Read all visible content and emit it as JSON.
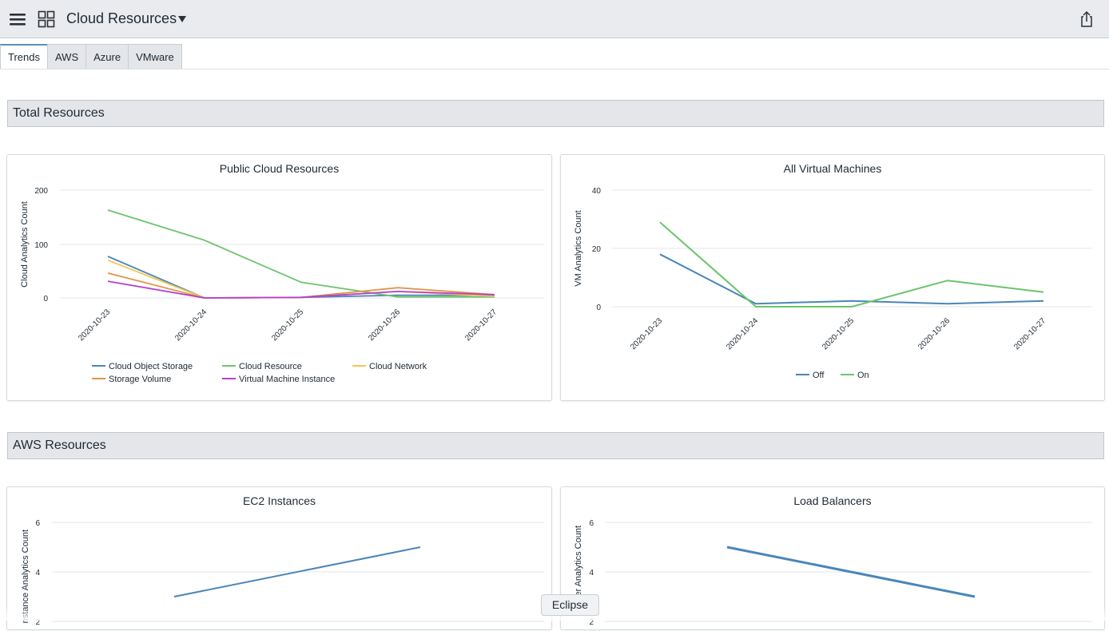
{
  "header": {
    "title": "Cloud Resources",
    "icons": {
      "menu": "hamburger-menu-icon",
      "grid": "grid-icon",
      "caret": "caret-down-icon",
      "share": "share-icon"
    }
  },
  "tabs": [
    {
      "label": "Trends",
      "active": true
    },
    {
      "label": "AWS",
      "active": false
    },
    {
      "label": "Azure",
      "active": false
    },
    {
      "label": "VMware",
      "active": false
    }
  ],
  "sections": {
    "total": {
      "label": "Total Resources"
    },
    "aws": {
      "label": "AWS Resources"
    }
  },
  "tooltip": {
    "label": "Eclipse"
  },
  "charts": {
    "public_cloud": {
      "title": "Public Cloud Resources",
      "ylabel": "Cloud Analytics Count",
      "yticks": [
        "200",
        "100",
        "0"
      ],
      "xticks": [
        "2020-10-23",
        "2020-10-24",
        "2020-10-25",
        "2020-10-26",
        "2020-10-27"
      ]
    },
    "all_vms": {
      "title": "All Virtual Machines",
      "ylabel": "VM Analytics Count",
      "yticks": [
        "40",
        "20",
        "0"
      ],
      "xticks": [
        "2020-10-23",
        "2020-10-24",
        "2020-10-25",
        "2020-10-26",
        "2020-10-27"
      ]
    },
    "ec2": {
      "title": "EC2 Instances",
      "ylabel": "nstance Analytics Count",
      "yticks": [
        "6",
        "4",
        "2"
      ]
    },
    "load_balancers": {
      "title": "Load Balancers",
      "ylabel": "er Analytics Count",
      "yticks": [
        "6",
        "4",
        "2"
      ]
    }
  },
  "chart_data": [
    {
      "type": "line",
      "title": "Public Cloud Resources",
      "ylabel": "Cloud Analytics Count",
      "ylim": [
        0,
        200
      ],
      "x": [
        "2020-10-23",
        "2020-10-24",
        "2020-10-25",
        "2020-10-26",
        "2020-10-27"
      ],
      "grid": true,
      "legend": "bottom",
      "series": [
        {
          "name": "Cloud Object Storage",
          "color": "#4a86b8",
          "values": [
            77,
            0,
            1,
            5,
            5
          ]
        },
        {
          "name": "Cloud Resource",
          "color": "#6cc46c",
          "values": [
            163,
            107,
            29,
            2,
            2
          ]
        },
        {
          "name": "Cloud Network",
          "color": "#f5c453",
          "values": [
            70,
            0,
            1,
            12,
            3
          ]
        },
        {
          "name": "Storage Volume",
          "color": "#e29446",
          "values": [
            46,
            0,
            1,
            19,
            6
          ]
        },
        {
          "name": "Virtual Machine Instance",
          "color": "#b63fcf",
          "values": [
            31,
            0,
            1,
            12,
            6
          ]
        }
      ]
    },
    {
      "type": "line",
      "title": "All Virtual Machines",
      "ylabel": "VM Analytics Count",
      "ylim": [
        0,
        40
      ],
      "x": [
        "2020-10-23",
        "2020-10-24",
        "2020-10-25",
        "2020-10-26",
        "2020-10-27"
      ],
      "grid": true,
      "legend": "bottom",
      "series": [
        {
          "name": "Off",
          "color": "#4a86b8",
          "values": [
            18,
            1,
            2,
            1,
            2
          ]
        },
        {
          "name": "On",
          "color": "#6cc46c",
          "values": [
            29,
            0,
            0,
            9,
            5
          ]
        }
      ]
    },
    {
      "type": "line",
      "title": "EC2 Instances",
      "ylim": [
        2,
        6
      ],
      "grid": true,
      "series": [
        {
          "name": "",
          "color": "#4a86b8",
          "values": [
            3,
            5
          ]
        }
      ]
    },
    {
      "type": "line",
      "title": "Load Balancers",
      "ylim": [
        2,
        6
      ],
      "grid": true,
      "series": [
        {
          "name": "",
          "color": "#4a86b8",
          "values": [
            5,
            3
          ]
        }
      ]
    }
  ]
}
